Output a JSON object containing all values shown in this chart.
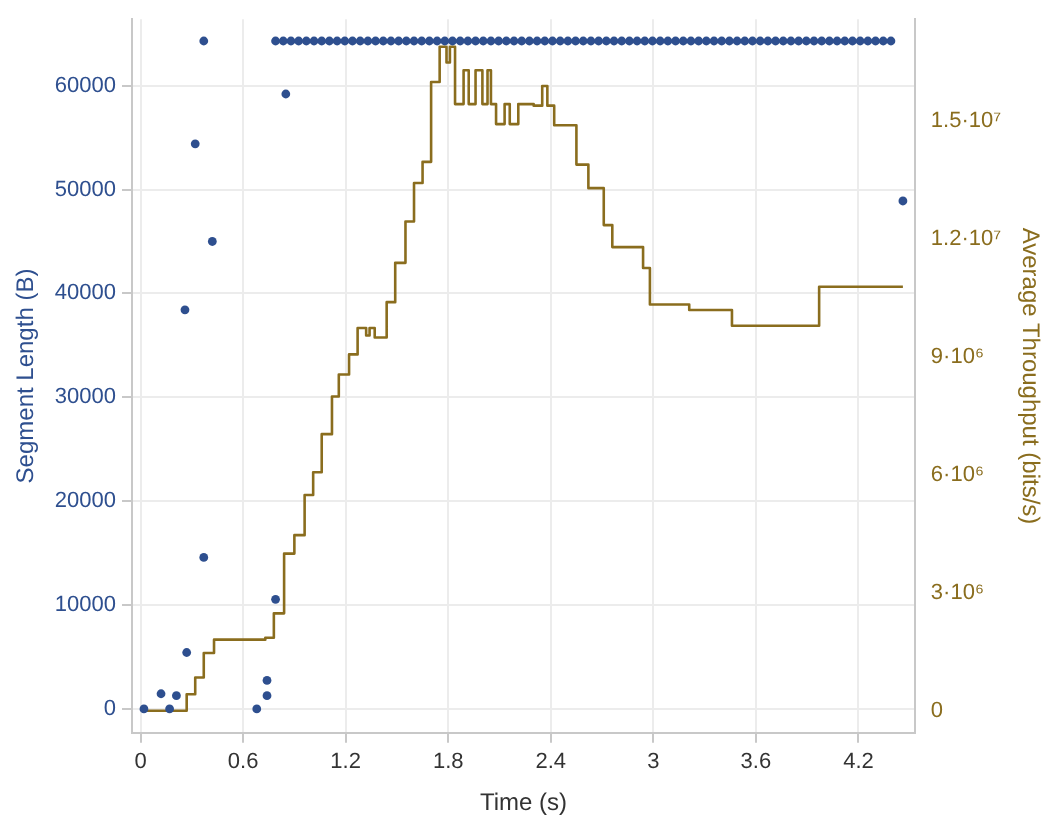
{
  "chart_data": {
    "type": "scatter",
    "xlabel": "Time (s)",
    "ylabel": "Segment Length (B)",
    "y2label": "Average Throughput (bits/s)",
    "xlim": [
      -0.05,
      4.53
    ],
    "xticks": [
      0,
      0.6,
      1.2,
      1.8,
      2.4,
      3,
      3.6,
      4.2
    ],
    "ylim": [
      -2300,
      66400
    ],
    "yticks": [
      0,
      10000,
      20000,
      30000,
      40000,
      50000,
      60000
    ],
    "y2lim": [
      -560000,
      17600000
    ],
    "y2ticks": [
      0,
      {
        "value": 3000000,
        "label": "3·10⁶"
      },
      {
        "value": 6000000,
        "label": "6·10⁶"
      },
      {
        "value": 9000000,
        "label": "9·10⁶"
      },
      {
        "value": 12000000,
        "label": "1.2·10⁷"
      },
      {
        "value": 15000000,
        "label": "1.5·10⁷"
      }
    ],
    "grid": true,
    "legend": false,
    "marker": "circle",
    "series": [
      {
        "type": "scatter",
        "color": "#2e4f8f",
        "x": [
          0.02,
          0.12,
          0.17,
          0.21,
          0.26,
          0.27,
          0.32,
          0.37,
          0.37,
          0.42,
          0.68,
          0.74,
          0.74,
          0.79,
          0.85,
          0.79,
          0.835,
          0.88,
          0.925,
          0.97,
          1.015,
          1.06,
          1.105,
          1.15,
          1.195,
          1.24,
          1.285,
          1.33,
          1.375,
          1.42,
          1.465,
          1.51,
          1.555,
          1.6,
          1.645,
          1.69,
          1.735,
          1.78,
          1.825,
          1.87,
          1.915,
          1.96,
          2.005,
          2.05,
          2.095,
          2.14,
          2.185,
          2.23,
          2.275,
          2.32,
          2.365,
          2.41,
          2.455,
          2.5,
          2.545,
          2.59,
          2.635,
          2.68,
          2.725,
          2.77,
          2.815,
          2.86,
          2.905,
          2.95,
          2.995,
          3.04,
          3.085,
          3.13,
          3.175,
          3.22,
          3.265,
          3.31,
          3.355,
          3.4,
          3.445,
          3.49,
          3.535,
          3.58,
          3.625,
          3.67,
          3.715,
          3.76,
          3.805,
          3.85,
          3.895,
          3.94,
          3.985,
          4.03,
          4.075,
          4.12,
          4.165,
          4.21,
          4.255,
          4.3,
          4.345,
          4.39,
          4.46
        ],
        "values": [
          0,
          1460,
          0,
          1270,
          38420,
          5430,
          54400,
          64300,
          14580,
          45000,
          0,
          1270,
          2740,
          10550,
          59200,
          64300,
          64300,
          64300,
          64300,
          64300,
          64300,
          64300,
          64300,
          64300,
          64300,
          64300,
          64300,
          64300,
          64300,
          64300,
          64300,
          64300,
          64300,
          64300,
          64300,
          64300,
          64300,
          64300,
          64300,
          64300,
          64300,
          64300,
          64300,
          64300,
          64300,
          64300,
          64300,
          64300,
          64300,
          64300,
          64300,
          64300,
          64300,
          64300,
          64300,
          64300,
          64300,
          64300,
          64300,
          64300,
          64300,
          64300,
          64300,
          64300,
          64300,
          64300,
          64300,
          64300,
          64300,
          64300,
          64300,
          64300,
          64300,
          64300,
          64300,
          64300,
          64300,
          64300,
          64300,
          64300,
          64300,
          64300,
          64300,
          64300,
          64300,
          64300,
          64300,
          64300,
          64300,
          64300,
          64300,
          64300,
          64300,
          64300,
          64300,
          64300,
          48900
        ]
      },
      {
        "type": "step",
        "axis": "y2",
        "color": "#8a6d1e",
        "marker": "none",
        "line_style": "solid",
        "x": [
          0.02,
          0.27,
          0.32,
          0.37,
          0.43,
          0.73,
          0.78,
          0.84,
          0.9,
          0.96,
          1.01,
          1.06,
          1.12,
          1.16,
          1.22,
          1.27,
          1.32,
          1.34,
          1.37,
          1.44,
          1.49,
          1.55,
          1.6,
          1.65,
          1.7,
          1.75,
          1.79,
          1.81,
          1.84,
          1.89,
          1.92,
          1.96,
          2.0,
          2.03,
          2.05,
          2.08,
          2.13,
          2.16,
          2.21,
          2.3,
          2.35,
          2.38,
          2.42,
          2.55,
          2.62,
          2.71,
          2.76,
          2.94,
          2.98,
          3.21,
          3.46,
          3.97,
          4.46
        ],
        "values": [
          0,
          420000,
          846000,
          1470000,
          1810000,
          1860000,
          2480000,
          4000000,
          4470000,
          5490000,
          6070000,
          7040000,
          8000000,
          8560000,
          9070000,
          9740000,
          9550000,
          9740000,
          9500000,
          10400000,
          11400000,
          12450000,
          13430000,
          13970000,
          16000000,
          16900000,
          16500000,
          16900000,
          15440000,
          16300000,
          15440000,
          16300000,
          15440000,
          16300000,
          15440000,
          14930000,
          15440000,
          14930000,
          15440000,
          15400000,
          15900000,
          15400000,
          14900000,
          13900000,
          13300000,
          12360000,
          11800000,
          11270000,
          10340000,
          10200000,
          9800000,
          10790000,
          10790000
        ]
      }
    ]
  }
}
